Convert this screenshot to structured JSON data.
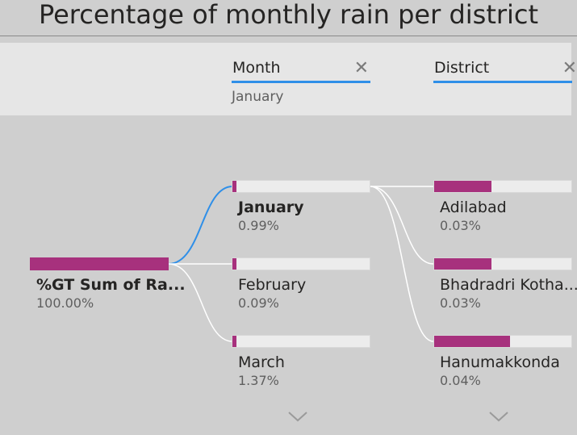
{
  "title": "Percentage of monthly rain per district",
  "levels": [
    {
      "header": "Month",
      "selected": "January"
    },
    {
      "header": "District"
    }
  ],
  "root": {
    "label": "%GT Sum of Ra...",
    "value": "100.00%",
    "fraction": 1.0
  },
  "months": [
    {
      "label": "January",
      "value": "0.99%",
      "fraction": 0.0099,
      "selected": true
    },
    {
      "label": "February",
      "value": "0.09%",
      "fraction": 0.0009,
      "selected": false
    },
    {
      "label": "March",
      "value": "1.37%",
      "fraction": 0.0137,
      "selected": false
    }
  ],
  "districts": [
    {
      "label": "Adilabad",
      "value": "0.03%",
      "fraction": 0.42
    },
    {
      "label": "Bhadradri Kotha...",
      "value": "0.03%",
      "fraction": 0.42
    },
    {
      "label": "Hanumakkonda",
      "value": "0.04%",
      "fraction": 0.55
    }
  ],
  "colors": {
    "bar": "#a7317d",
    "accent": "#2f8fe8",
    "link": "#ffffff"
  },
  "icons": {
    "close": "close-icon",
    "expand": "chevron-down-icon"
  }
}
